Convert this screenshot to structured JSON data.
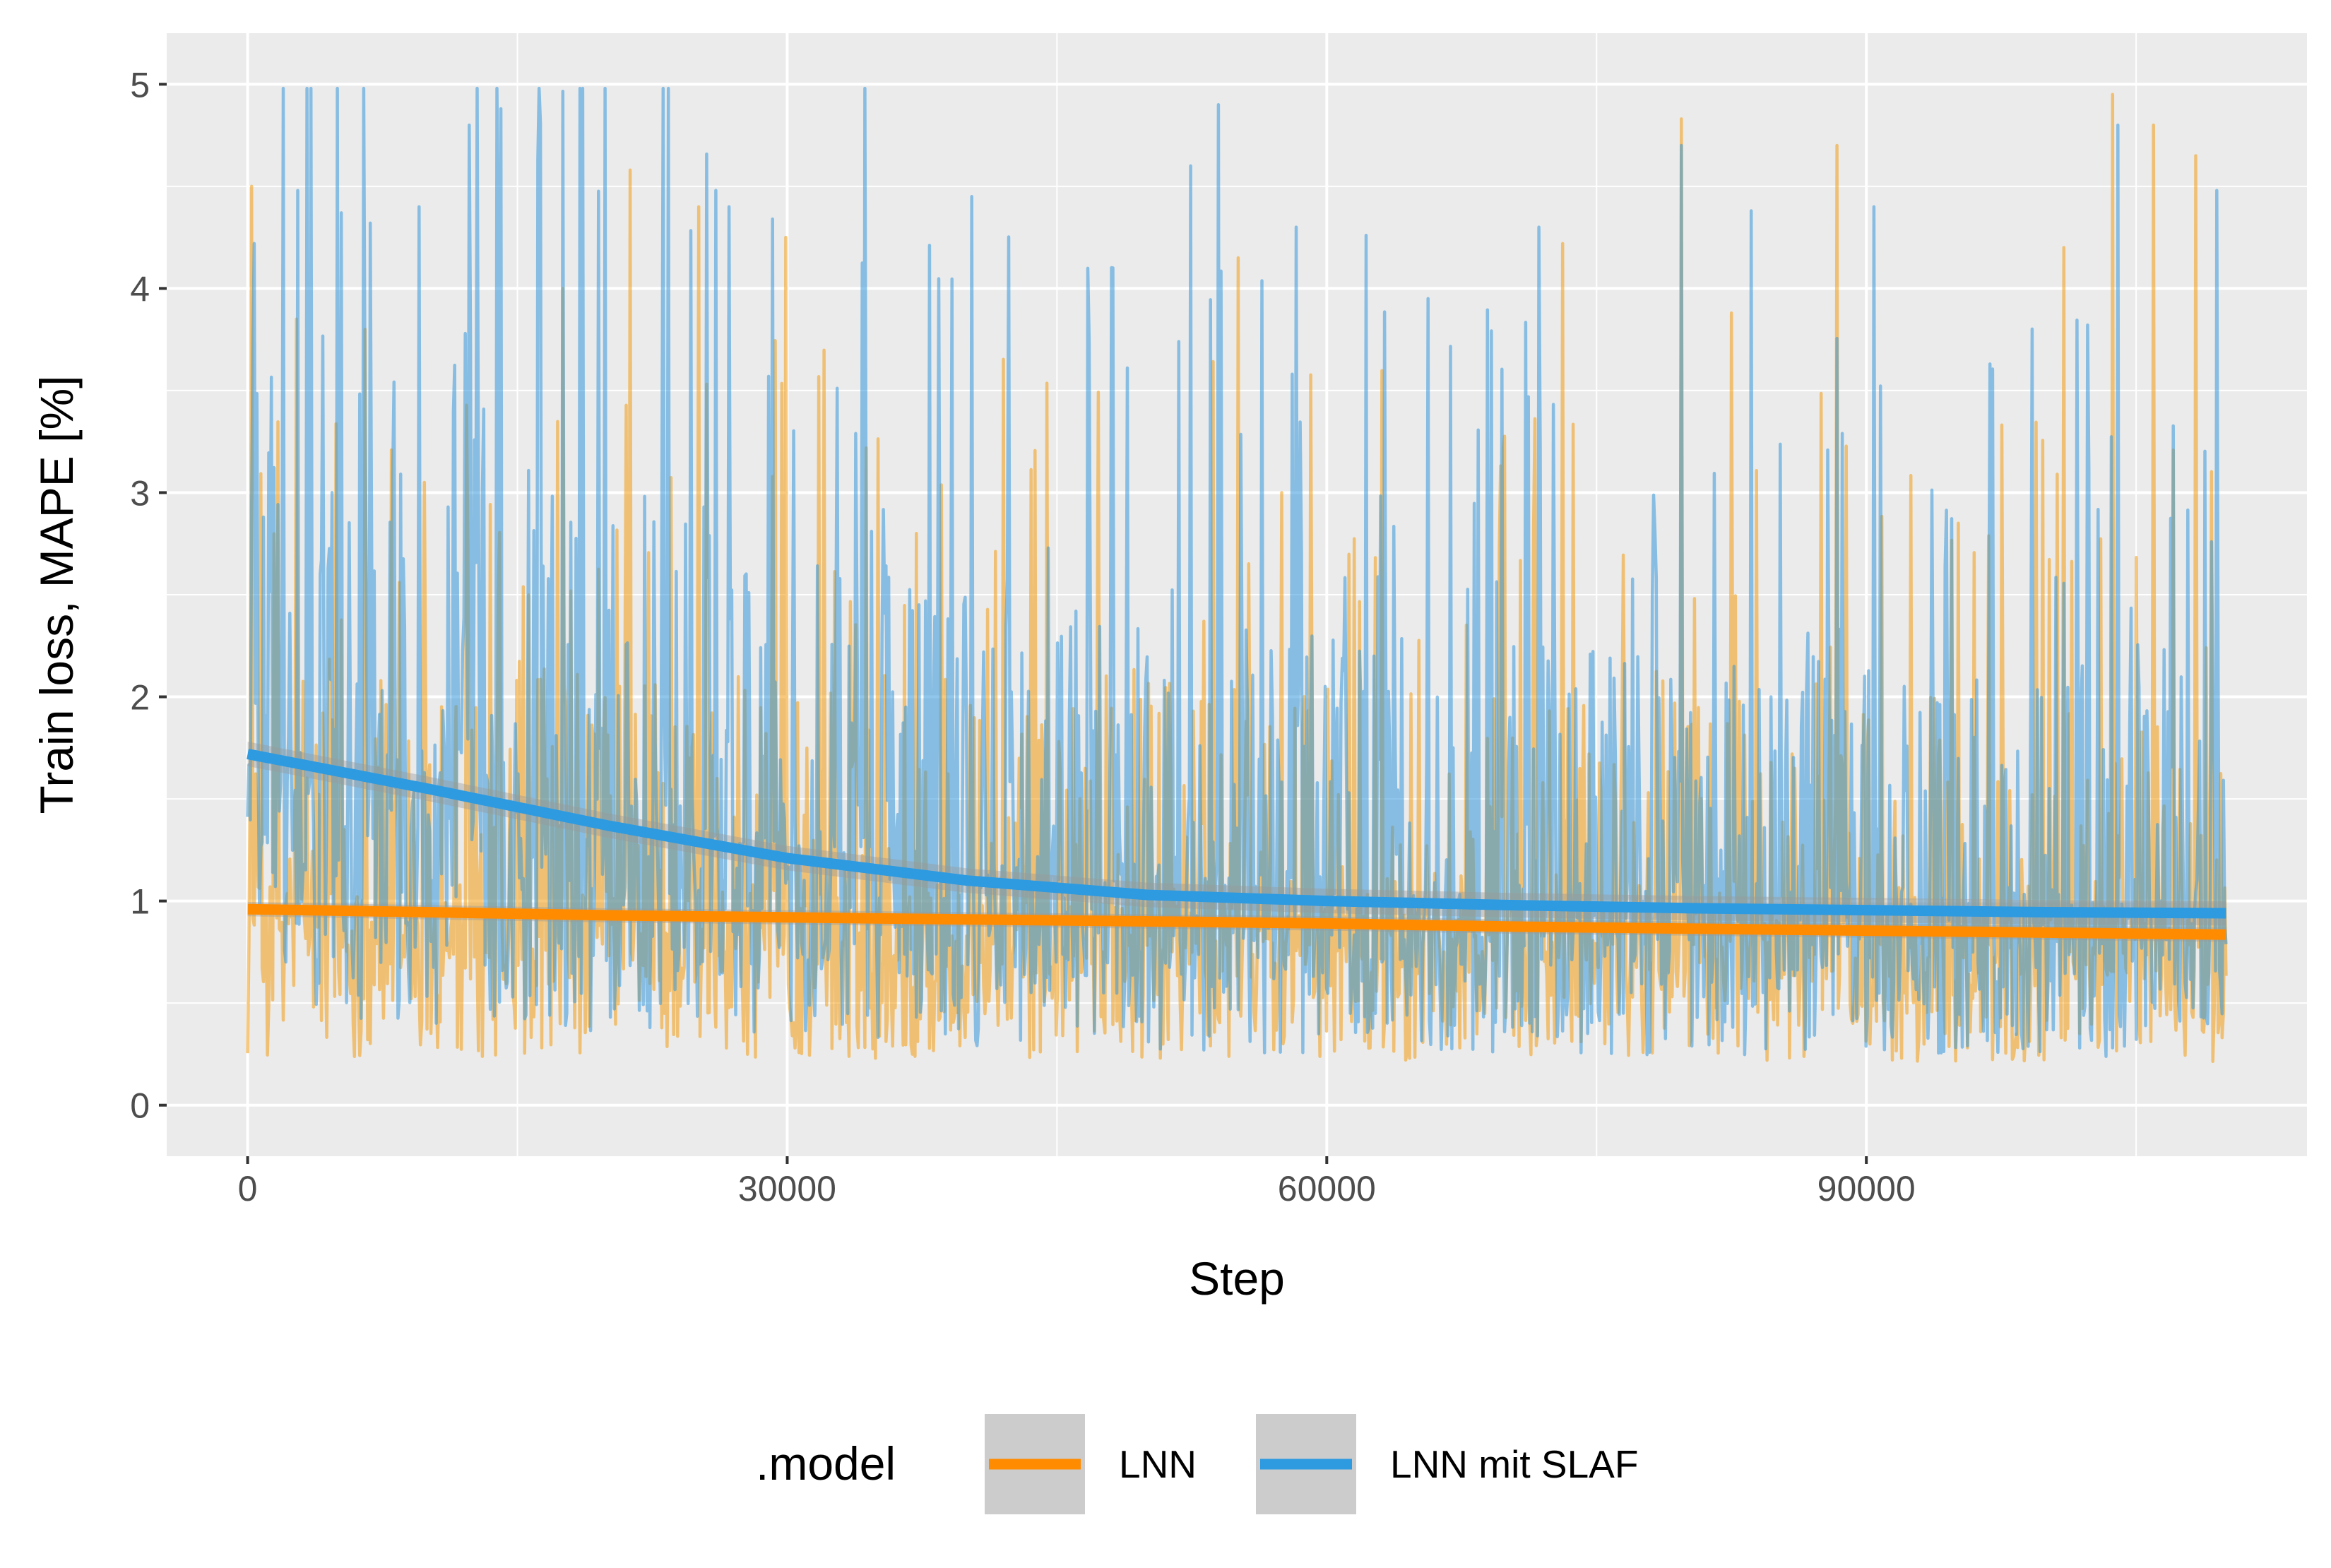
{
  "chart_data": {
    "type": "line",
    "title": "",
    "xlabel": "Step",
    "ylabel": "Train loss, MAPE [%]",
    "xlim": [
      -4500,
      114500
    ],
    "ylim": [
      -0.25,
      5.25
    ],
    "x_ticks": [
      0,
      30000,
      60000,
      90000
    ],
    "x_tick_labels": [
      "0",
      "30000",
      "60000",
      "90000"
    ],
    "y_ticks": [
      0,
      1,
      2,
      3,
      4,
      5
    ],
    "y_tick_labels": [
      "0",
      "1",
      "2",
      "3",
      "4",
      "5"
    ],
    "grid": true,
    "legend": {
      "title": ".model",
      "position": "bottom",
      "entries": [
        "LNN",
        "LNN mit SLAF"
      ]
    },
    "x_range": [
      0,
      110000
    ],
    "series": [
      {
        "name": "LNN",
        "kind": "raw",
        "color": "#F39C12",
        "opacity": 0.55,
        "description_typical_range": [
          0.1,
          4.9
        ],
        "peaks": [
          {
            "x": 200,
            "y": 4.5
          },
          {
            "x": 2700,
            "y": 3.85
          },
          {
            "x": 6500,
            "y": 3.8
          },
          {
            "x": 9800,
            "y": 3.05
          },
          {
            "x": 17500,
            "y": 4.0
          },
          {
            "x": 21300,
            "y": 4.58
          },
          {
            "x": 25100,
            "y": 4.4
          },
          {
            "x": 29900,
            "y": 4.25
          },
          {
            "x": 37200,
            "y": 2.8
          },
          {
            "x": 55100,
            "y": 4.15
          },
          {
            "x": 57500,
            "y": 3.0
          },
          {
            "x": 73100,
            "y": 4.22
          },
          {
            "x": 79700,
            "y": 4.83
          },
          {
            "x": 82500,
            "y": 3.88
          },
          {
            "x": 88400,
            "y": 4.7
          },
          {
            "x": 95100,
            "y": 2.85
          },
          {
            "x": 101000,
            "y": 4.2
          },
          {
            "x": 103700,
            "y": 4.95
          },
          {
            "x": 106000,
            "y": 4.8
          },
          {
            "x": 108300,
            "y": 4.65
          }
        ]
      },
      {
        "name": "LNN mit SLAF",
        "kind": "raw",
        "color": "#3498DB",
        "opacity": 0.55,
        "description_typical_range": [
          0.15,
          4.98
        ],
        "peaks": [
          {
            "x": 400,
            "y": 4.22
          },
          {
            "x": 2800,
            "y": 4.48
          },
          {
            "x": 5200,
            "y": 4.37
          },
          {
            "x": 6800,
            "y": 4.32
          },
          {
            "x": 9500,
            "y": 4.4
          },
          {
            "x": 12300,
            "y": 4.8
          },
          {
            "x": 14100,
            "y": 4.88
          },
          {
            "x": 16100,
            "y": 4.63
          },
          {
            "x": 26000,
            "y": 4.48
          },
          {
            "x": 34300,
            "y": 4.98
          },
          {
            "x": 52400,
            "y": 4.6
          },
          {
            "x": 54000,
            "y": 4.9
          },
          {
            "x": 58300,
            "y": 4.3
          },
          {
            "x": 62200,
            "y": 4.26
          },
          {
            "x": 71800,
            "y": 4.3
          },
          {
            "x": 79700,
            "y": 4.7
          },
          {
            "x": 83600,
            "y": 4.38
          },
          {
            "x": 90400,
            "y": 4.4
          },
          {
            "x": 104000,
            "y": 4.8
          },
          {
            "x": 109500,
            "y": 4.48
          }
        ]
      },
      {
        "name": "LNN",
        "kind": "smooth",
        "color": "#FF8C00",
        "x": [
          0,
          10000,
          20000,
          30000,
          40000,
          50000,
          60000,
          70000,
          80000,
          90000,
          100000,
          110000
        ],
        "y": [
          0.96,
          0.945,
          0.93,
          0.92,
          0.91,
          0.9,
          0.89,
          0.875,
          0.865,
          0.855,
          0.845,
          0.835
        ]
      },
      {
        "name": "LNN mit SLAF",
        "kind": "smooth",
        "color": "#2E9AE0",
        "x": [
          0,
          10000,
          20000,
          30000,
          40000,
          50000,
          60000,
          70000,
          80000,
          90000,
          100000,
          110000
        ],
        "y": [
          1.72,
          1.55,
          1.37,
          1.21,
          1.1,
          1.03,
          1.0,
          0.98,
          0.965,
          0.955,
          0.945,
          0.94
        ]
      }
    ],
    "colors": {
      "panel_background": "#EBEBEB",
      "grid_major": "#FFFFFF",
      "lnn": "#FF8C00",
      "slaf": "#2E9AE0",
      "ribbon": "#999999",
      "legend_key_background": "#CCCCCC"
    }
  }
}
